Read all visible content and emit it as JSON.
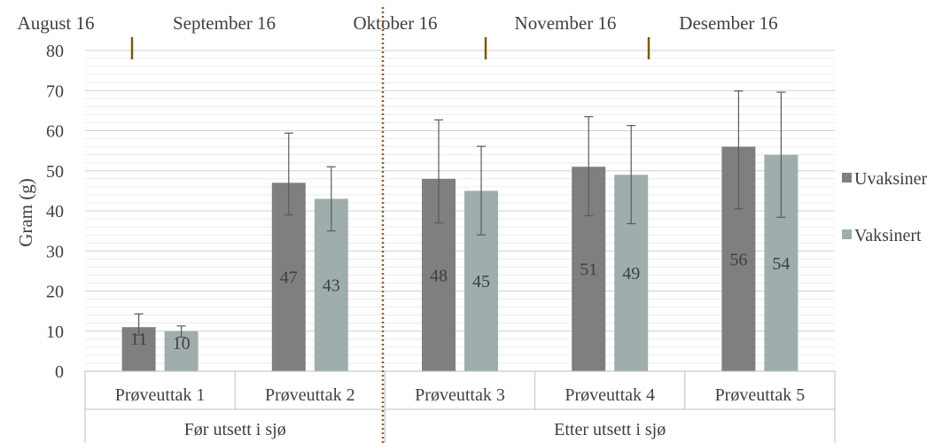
{
  "chart_data": {
    "type": "bar",
    "title": "",
    "xlabel": "",
    "ylabel": "Gram (g)",
    "ylim": [
      0,
      80
    ],
    "yticks": [
      0,
      10,
      20,
      30,
      40,
      50,
      60,
      70,
      80
    ],
    "grid": true,
    "legend_position": "right",
    "categories": [
      "Prøveuttak 1",
      "Prøveuttak 2",
      "Prøveuttak 3",
      "Prøveuttak 4",
      "Prøveuttak 5"
    ],
    "groups": [
      {
        "label": "Før utsett i sjø",
        "categories": [
          "Prøveuttak 1",
          "Prøveuttak 2"
        ]
      },
      {
        "label": "Etter utsett i sjø",
        "categories": [
          "Prøveuttak 3",
          "Prøveuttak 4",
          "Prøveuttak 5"
        ]
      }
    ],
    "series": [
      {
        "name": "Uvaksinert",
        "color": "#7f7f7f",
        "values": [
          11,
          47,
          48,
          51,
          56
        ],
        "error_low": [
          9,
          39,
          37,
          38.8,
          40.5
        ],
        "error_high": [
          14.3,
          59.4,
          62.7,
          63.5,
          69.9
        ]
      },
      {
        "name": "Vaksinert",
        "color": "#9faeac",
        "values": [
          10,
          43,
          45,
          49,
          54
        ],
        "error_low": [
          8.5,
          35,
          34,
          36.8,
          38.4
        ],
        "error_high": [
          11.3,
          51,
          56.1,
          61.3,
          69.6
        ]
      }
    ],
    "timeline": {
      "labels": [
        "August 16",
        "September 16",
        "Oktober 16",
        "November 16",
        "Desember 16"
      ],
      "marker_color": "#7a5a10"
    },
    "divider_color": "#8b5a2b"
  }
}
